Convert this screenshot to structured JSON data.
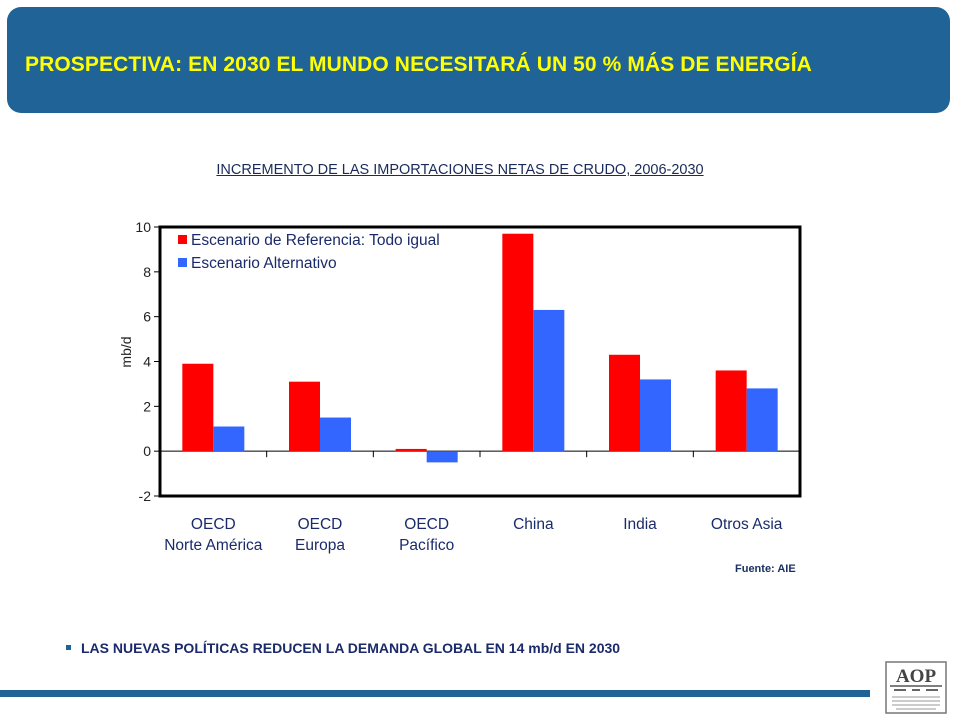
{
  "header": {
    "title": "PROSPECTIVA: EN 2030 EL MUNDO NECESITARÁ UN 50 % MÁS DE ENERGÍA"
  },
  "source_note": "Fuente: AIE",
  "bullet": {
    "text": "LAS NUEVAS POLÍTICAS REDUCEN LA DEMANDA GLOBAL EN 14 mb/d EN 2030"
  },
  "logo": {
    "text": "AOP"
  },
  "colors": {
    "header_bg": "#1f6397",
    "header_text": "#ffff00",
    "series_reference": "#ff0000",
    "series_alternative": "#3366ff"
  },
  "chart_data": {
    "type": "bar",
    "title": "INCREMENTO DE LAS IMPORTACIONES NETAS DE CRUDO, 2006-2030",
    "ylabel": "mb/d",
    "xlabel": "",
    "ylim": [
      -2,
      10
    ],
    "yticks": [
      "10",
      "8",
      "6",
      "4",
      "2",
      "0",
      "-2"
    ],
    "categories": [
      [
        "OECD",
        "Norte América"
      ],
      [
        "OECD",
        "Europa"
      ],
      [
        "OECD",
        "Pacífico"
      ],
      [
        "China"
      ],
      [
        "India"
      ],
      [
        "Otros Asia"
      ]
    ],
    "series": [
      {
        "name": "Escenario de Referencia: Todo igual",
        "values": [
          3.9,
          3.1,
          0.1,
          9.7,
          4.3,
          3.6
        ]
      },
      {
        "name": "Escenario Alternativo",
        "values": [
          1.1,
          1.5,
          -0.5,
          6.3,
          3.2,
          2.8
        ]
      }
    ],
    "legend_position": "top-left",
    "grid": false
  }
}
